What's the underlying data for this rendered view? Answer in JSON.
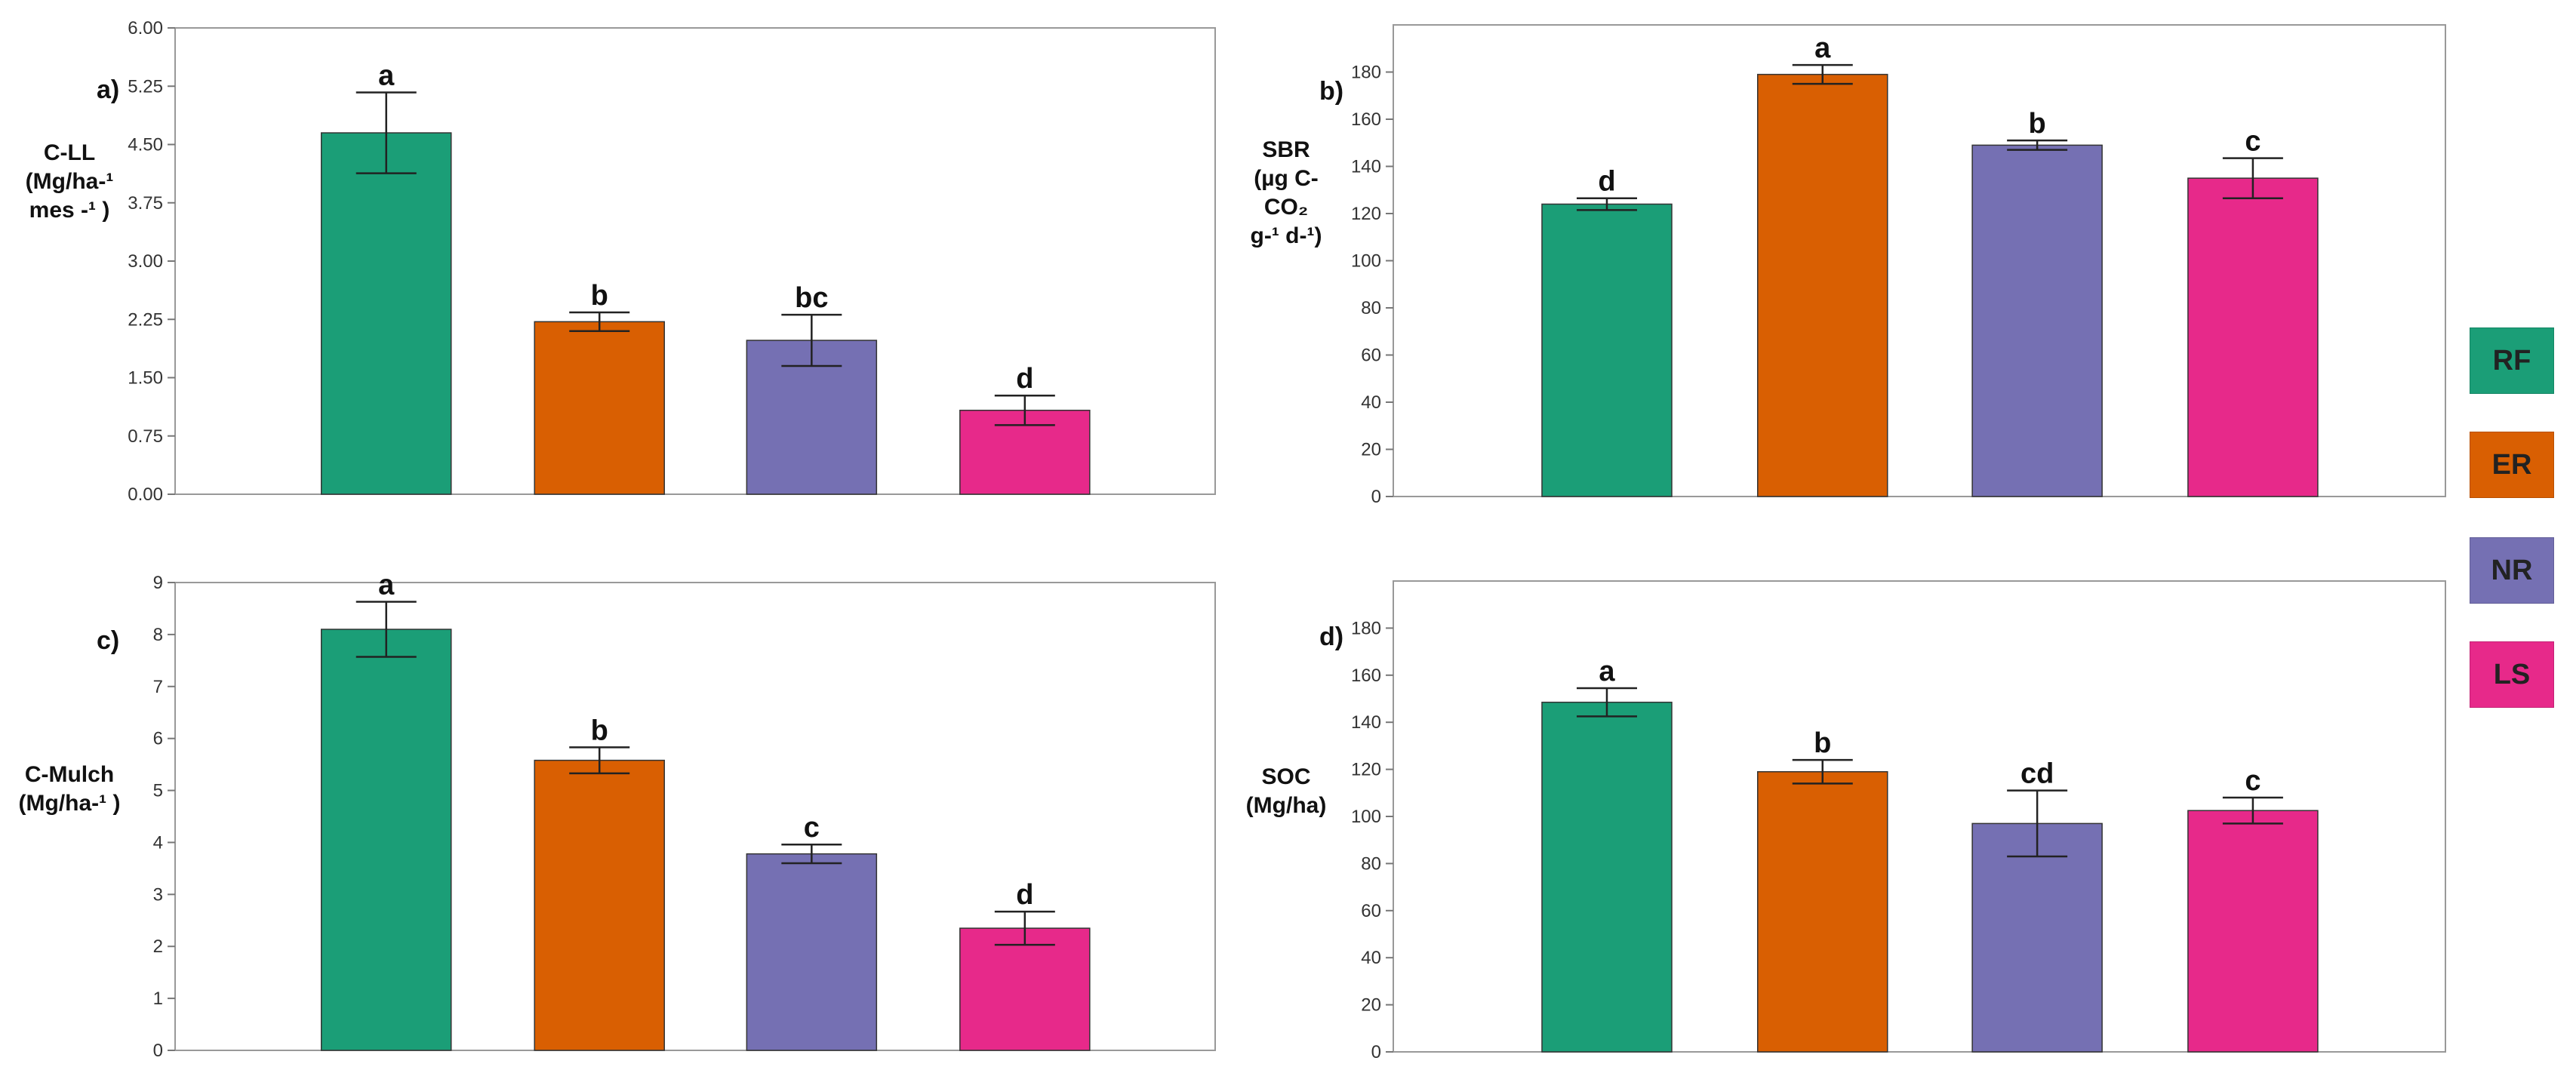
{
  "colors": {
    "RF": "#1b9e77",
    "ER": "#d95f02",
    "NR": "#7570b3",
    "LS": "#e7298a"
  },
  "legend": {
    "items": [
      "RF",
      "ER",
      "NR",
      "LS"
    ]
  },
  "chart_data": [
    {
      "type": "bar",
      "panel_letter": "a)",
      "ylabel_lines": [
        "C-LL",
        "(Mg/ha-¹",
        "mes -¹ )"
      ],
      "categories": [
        "RF",
        "ER",
        "NR",
        "LS"
      ],
      "values": [
        4.65,
        2.22,
        1.98,
        1.08
      ],
      "errors": [
        0.52,
        0.12,
        0.33,
        0.19
      ],
      "significance": [
        "a",
        "b",
        "bc",
        "d"
      ],
      "ylim": [
        0,
        6
      ],
      "yticks": [
        "0.00",
        "0.75",
        "1.50",
        "2.25",
        "3.00",
        "3.75",
        "4.50",
        "5.25",
        "6.00"
      ],
      "grid": false
    },
    {
      "type": "bar",
      "panel_letter": "b)",
      "ylabel_lines": [
        "SBR",
        "(µg C-",
        "CO₂",
        "g-¹ d-¹)"
      ],
      "categories": [
        "RF",
        "ER",
        "NR",
        "LS"
      ],
      "values": [
        124,
        179,
        149,
        135
      ],
      "errors": [
        2.5,
        4,
        2,
        8.5
      ],
      "significance": [
        "d",
        "a",
        "b",
        "c"
      ],
      "ylim": [
        0,
        200
      ],
      "yticks": [
        "0",
        "20",
        "40",
        "60",
        "80",
        "100",
        "120",
        "140",
        "160",
        "180"
      ],
      "grid": false
    },
    {
      "type": "bar",
      "panel_letter": "c)",
      "ylabel_lines": [
        "C-Mulch",
        "(Mg/ha-¹ )"
      ],
      "categories": [
        "RF",
        "ER",
        "NR",
        "LS"
      ],
      "values": [
        8.1,
        5.58,
        3.78,
        2.35
      ],
      "errors": [
        0.53,
        0.25,
        0.18,
        0.32
      ],
      "significance": [
        "a",
        "b",
        "c",
        "d"
      ],
      "ylim": [
        0,
        9
      ],
      "yticks": [
        "0",
        "1",
        "2",
        "3",
        "4",
        "5",
        "6",
        "7",
        "8",
        "9"
      ],
      "grid": false
    },
    {
      "type": "bar",
      "panel_letter": "d)",
      "ylabel_lines": [
        "SOC",
        "(Mg/ha)"
      ],
      "categories": [
        "RF",
        "ER",
        "NR",
        "LS"
      ],
      "values": [
        148.5,
        119,
        97,
        102.5
      ],
      "errors": [
        6,
        5,
        14,
        5.5
      ],
      "significance": [
        "a",
        "b",
        "cd",
        "c"
      ],
      "ylim": [
        0,
        200
      ],
      "yticks": [
        "0",
        "20",
        "40",
        "60",
        "80",
        "100",
        "120",
        "140",
        "160",
        "180"
      ],
      "grid": false
    }
  ]
}
